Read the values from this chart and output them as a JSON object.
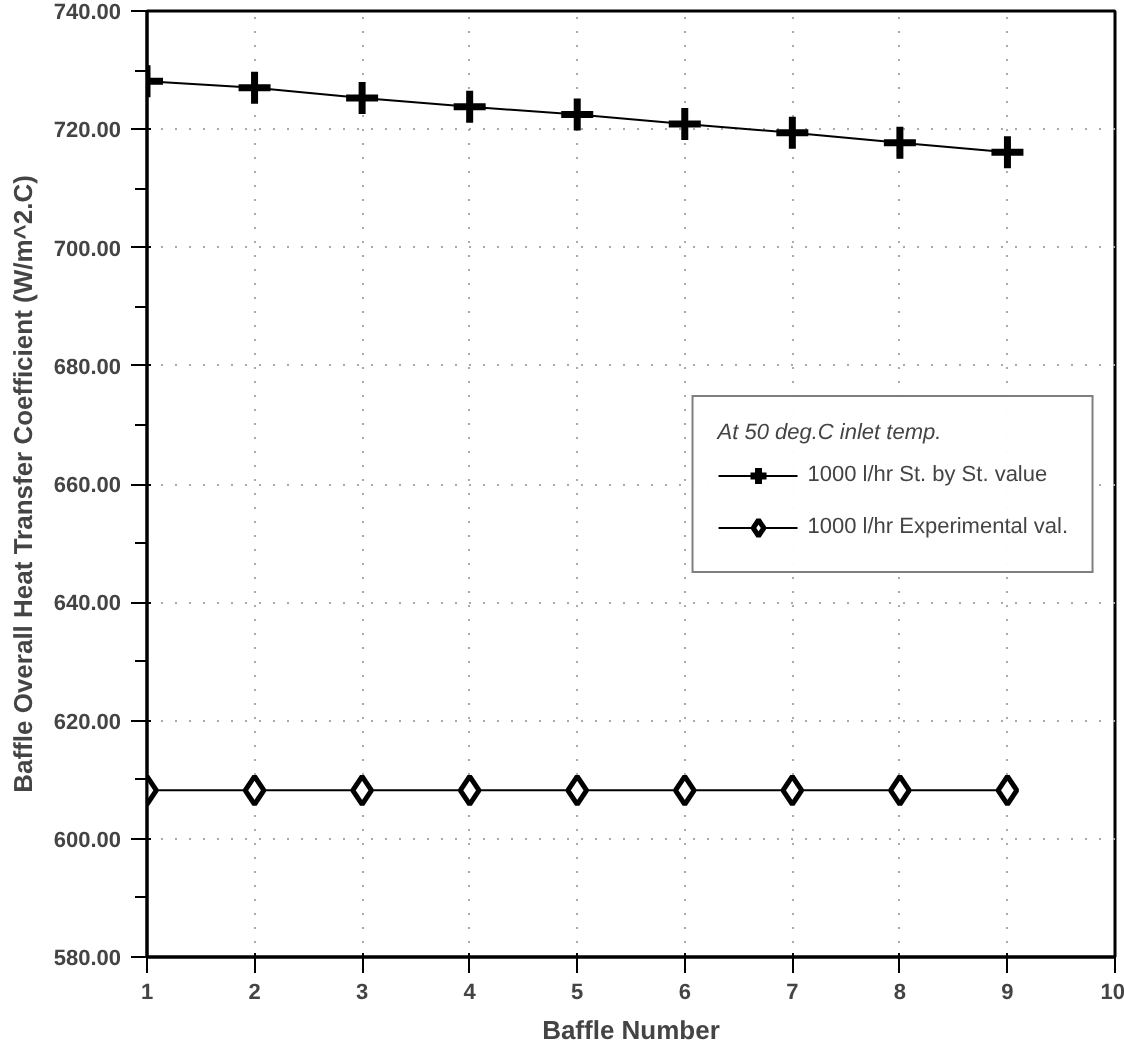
{
  "chart_data": {
    "type": "line",
    "xlabel": "Baffle Number",
    "ylabel": "Baffle Overall Heat Transfer Coefficient (W/m^2.C)",
    "legend_title": "At 50 deg.C inlet temp.",
    "legend": "right",
    "x": [
      1,
      2,
      3,
      4,
      5,
      6,
      7,
      8,
      9
    ],
    "series": [
      {
        "name": "1000 l/hr St. by St. value",
        "color": "#000000",
        "marker": "cross",
        "values": [
          728.1,
          727.0,
          725.3,
          723.8,
          722.5,
          720.9,
          719.4,
          717.7,
          716.1
        ]
      },
      {
        "name": "1000 l/hr Experimental val.",
        "color": "#000000",
        "marker": "diamond",
        "values": [
          608.2,
          608.2,
          608.2,
          608.2,
          608.2,
          608.2,
          608.2,
          608.2,
          608.2
        ]
      }
    ],
    "xlim": [
      1,
      10
    ],
    "xticks": [
      1,
      2,
      3,
      4,
      5,
      6,
      7,
      8,
      9,
      10
    ],
    "ylim": [
      580,
      740
    ],
    "yticks": [
      {
        "value": 580,
        "label": "580.00"
      },
      {
        "value": 590,
        "label": null
      },
      {
        "value": 600,
        "label": "600.00"
      },
      {
        "value": 610,
        "label": null
      },
      {
        "value": 620,
        "label": "620.00"
      },
      {
        "value": 630,
        "label": null
      },
      {
        "value": 640,
        "label": "640.00"
      },
      {
        "value": 650,
        "label": null
      },
      {
        "value": 660,
        "label": "660.00"
      },
      {
        "value": 670,
        "label": null
      },
      {
        "value": 680,
        "label": "680.00"
      },
      {
        "value": 690,
        "label": null
      },
      {
        "value": 700,
        "label": "700.00"
      },
      {
        "value": 710,
        "label": null
      },
      {
        "value": 720,
        "label": "720.00"
      },
      {
        "value": 730,
        "label": null
      },
      {
        "value": 740,
        "label": "740.00"
      }
    ],
    "grid": true,
    "line_style": "solid"
  }
}
